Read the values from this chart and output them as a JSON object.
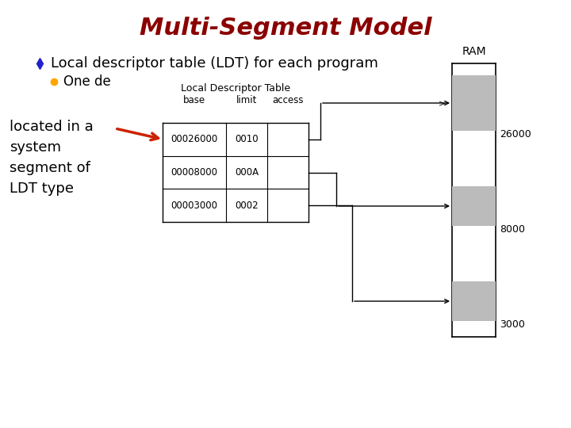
{
  "title": "Multi-Segment Model",
  "title_color": "#8B0000",
  "title_fontsize": 22,
  "title_fontstyle": "italic",
  "title_fontweight": "bold",
  "bullet1_text": "Local descriptor table (LDT) for each program",
  "bullet1_color": "#000000",
  "bullet1_bullet_color": "#2222CC",
  "bullet2_text": "One de",
  "bullet2_color": "#000000",
  "bullet2_bullet_color": "#FFA500",
  "left_text_lines": [
    "located in a",
    "system",
    "segment of",
    "LDT type"
  ],
  "ldt_label": "Local Descriptor Table",
  "table_headers": [
    "base",
    "limit",
    "access"
  ],
  "table_rows": [
    [
      "00026000",
      "0010",
      ""
    ],
    [
      "00008000",
      "000A",
      ""
    ],
    [
      "00003000",
      "0002",
      ""
    ]
  ],
  "ram_label": "RAM",
  "ram_numbers": [
    "26000",
    "8000",
    "3000"
  ],
  "bg_color": "#FFFFFF",
  "arrow_color": "#CC2200",
  "line_color": "#000000",
  "gray_color": "#BBBBBB"
}
